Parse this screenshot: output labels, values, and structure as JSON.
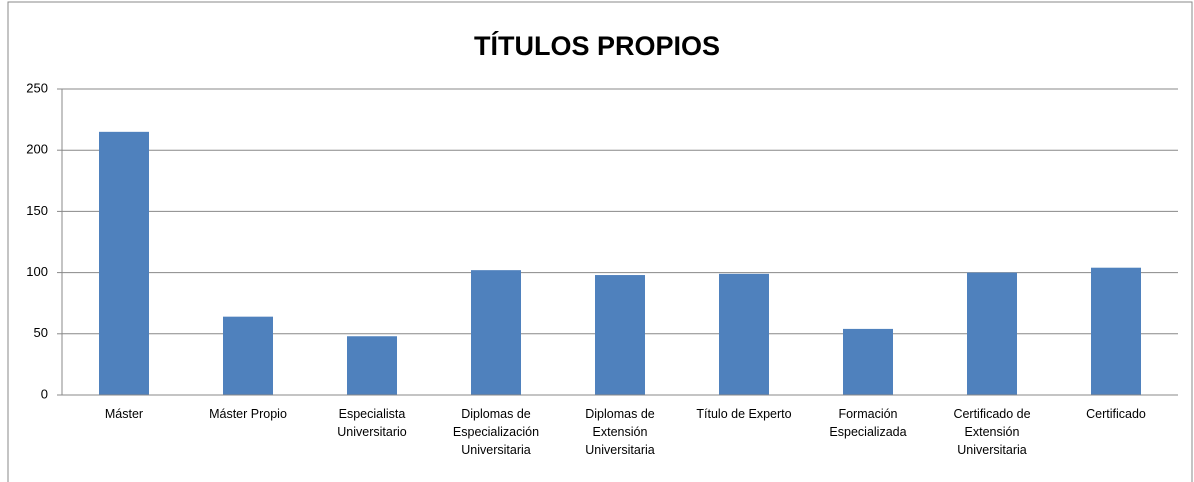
{
  "chart_data": {
    "type": "bar",
    "title": "TÍTULOS PROPIOS",
    "categories": [
      "Máster",
      "Máster Propio",
      "Especialista Universitario",
      "Diplomas de Especialización Universitaria",
      "Diplomas de Extensión Universitaria",
      "Título de Experto",
      "Formación Especializada",
      "Certificado de Extensión Universitaria",
      "Certificado"
    ],
    "values": [
      215,
      64,
      48,
      102,
      98,
      99,
      54,
      100,
      104
    ],
    "color": "#4f81bd",
    "ylim": [
      0,
      250
    ],
    "yticks": [
      0,
      50,
      100,
      150,
      200,
      250
    ],
    "grid": true
  }
}
